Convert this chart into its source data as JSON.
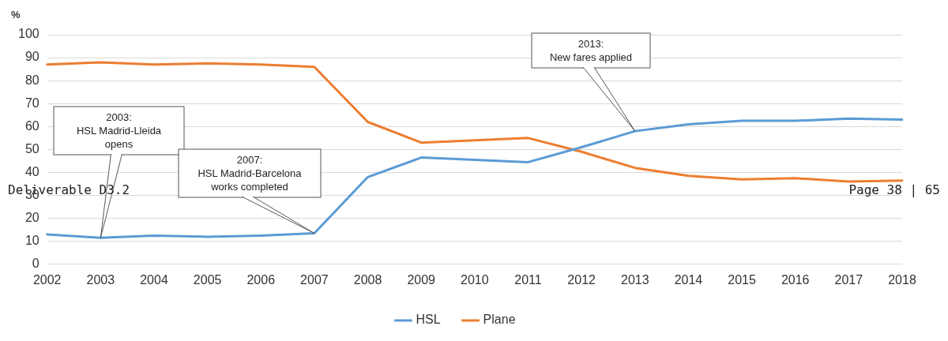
{
  "chart_data": {
    "type": "line",
    "ylabel": "%",
    "categories": [
      "2002",
      "2003",
      "2004",
      "2005",
      "2006",
      "2007",
      "2008",
      "2009",
      "2010",
      "2011",
      "2012",
      "2013",
      "2014",
      "2015",
      "2016",
      "2017",
      "2018"
    ],
    "series": [
      {
        "name": "HSL",
        "color": "#5b9bd5",
        "values": [
          13,
          11.5,
          12.5,
          12,
          12.5,
          13.5,
          38,
          46.5,
          45.5,
          44.5,
          51,
          58,
          61,
          62.5,
          62.5,
          63.5,
          63
        ]
      },
      {
        "name": "Plane",
        "color": "#ed7d31",
        "values": [
          87,
          88,
          87,
          87.5,
          87,
          86,
          62,
          53,
          54,
          55,
          49,
          42,
          38.5,
          37,
          37.5,
          36,
          36.5
        ]
      }
    ],
    "ylim": [
      0,
      100
    ],
    "yticks": [
      0,
      10,
      20,
      30,
      40,
      50,
      60,
      70,
      80,
      90,
      100
    ],
    "grid": "y",
    "legend": "bottom",
    "marker": "none",
    "line_style": "solid",
    "annotations": [
      {
        "text": "2003:\nHSL Madrid-Lleida\nopens",
        "x": "2003",
        "y": 11.5
      },
      {
        "text": "2007:\nHSL Madrid-Barcelona\nworks completed",
        "x": "2007",
        "y": 13.5
      },
      {
        "text": "2013:\nNew fares applied",
        "x": "2013",
        "y": 58
      },
      "Deliverable D3.2",
      "Page 38 | 65"
    ]
  }
}
